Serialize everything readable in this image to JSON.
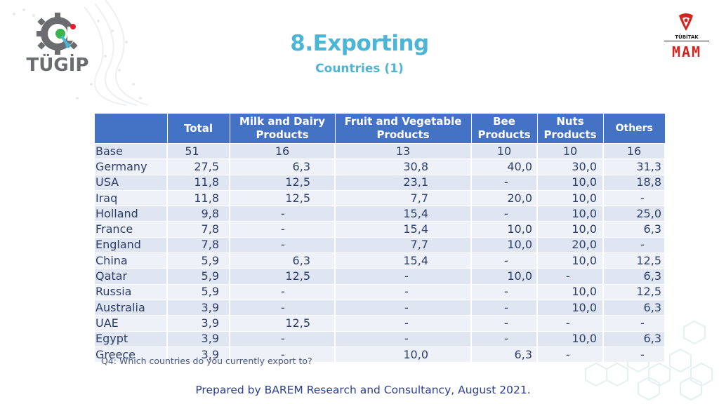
{
  "logos": {
    "left_text": "TÜGİP",
    "right_top_text": "TÜBİTAK",
    "right_bottom_text": "MAM"
  },
  "title": "8.Exporting",
  "subtitle": "Countries (1)",
  "colors": {
    "title": "#4cb5d6",
    "header_bg": "#4472c4",
    "row_even": "#dfe5f1",
    "row_odd": "#eef1f8",
    "text": "#2b3f6b",
    "accent_red": "#d0241f"
  },
  "table": {
    "headers": [
      "",
      "Total",
      "Milk and Dairy Products",
      "Fruit and Vegetable Products",
      "Bee Products",
      "Nuts Products",
      "Others"
    ],
    "base": {
      "label": "Base",
      "values": [
        "51",
        "16",
        "13",
        "10",
        "10",
        "16"
      ]
    },
    "rows": [
      {
        "label": "Germany",
        "values": [
          "27,5",
          "6,3",
          "30,8",
          "40,0",
          "30,0",
          "31,3"
        ]
      },
      {
        "label": "USA",
        "values": [
          "11,8",
          "12,5",
          "23,1",
          "-",
          "10,0",
          "18,8"
        ]
      },
      {
        "label": "Iraq",
        "values": [
          "11,8",
          "12,5",
          "7,7",
          "20,0",
          "10,0",
          "-"
        ]
      },
      {
        "label": "Holland",
        "values": [
          "9,8",
          "-",
          "15,4",
          "-",
          "10,0",
          "25,0"
        ]
      },
      {
        "label": "France",
        "values": [
          "7,8",
          "-",
          "15,4",
          "10,0",
          "10,0",
          "6,3"
        ]
      },
      {
        "label": "England",
        "values": [
          "7,8",
          "-",
          "7,7",
          "10,0",
          "20,0",
          "-"
        ]
      },
      {
        "label": "China",
        "values": [
          "5,9",
          "6,3",
          "15,4",
          "-",
          "10,0",
          "12,5"
        ]
      },
      {
        "label": "Qatar",
        "values": [
          "5,9",
          "12,5",
          "-",
          "10,0",
          "-",
          "6,3"
        ]
      },
      {
        "label": "Russia",
        "values": [
          "5,9",
          "-",
          "-",
          "-",
          "10,0",
          "12,5"
        ]
      },
      {
        "label": "Australia",
        "values": [
          "3,9",
          "-",
          "-",
          "-",
          "10,0",
          "6,3"
        ]
      },
      {
        "label": "UAE",
        "values": [
          "3,9",
          "12,5",
          "-",
          "-",
          "-",
          "-"
        ]
      },
      {
        "label": "Egypt",
        "values": [
          "3,9",
          "-",
          "-",
          "-",
          "10,0",
          "6,3"
        ]
      },
      {
        "label": "Greece",
        "values": [
          "3,9",
          "-",
          "10,0",
          "6,3",
          "-",
          "-"
        ]
      }
    ]
  },
  "question": "Q4: Which countries do you currently export to?",
  "footer": "Prepared by BAREM Research and Consultancy, August 2021."
}
